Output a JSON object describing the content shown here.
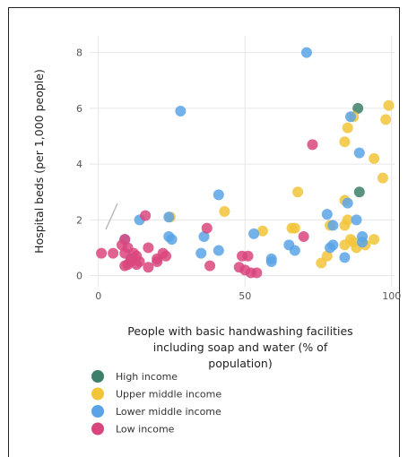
{
  "top_title_cut": "",
  "chart_data": {
    "type": "scatter",
    "title": "",
    "xlabel_lines": [
      "People with basic handwashing facilities",
      "including soap and water (% of",
      "population)"
    ],
    "ylabel": "Hospital beds (per 1,000 people)",
    "xlim": [
      -3,
      101
    ],
    "ylim": [
      -0.4,
      8.6
    ],
    "xticks": [
      0,
      50,
      100
    ],
    "yticks": [
      0,
      2,
      4,
      6,
      8
    ],
    "grid": true,
    "legend_position": "bottom-left",
    "series": [
      {
        "name": "High income",
        "color": "#3d7f6a",
        "points": [
          [
            88.5,
            6.0
          ],
          [
            89,
            3.0
          ]
        ]
      },
      {
        "name": "Upper middle income",
        "color": "#f2c438",
        "points": [
          [
            99,
            6.1
          ],
          [
            98,
            5.6
          ],
          [
            87,
            5.7
          ],
          [
            85,
            5.3
          ],
          [
            84,
            4.8
          ],
          [
            94,
            4.2
          ],
          [
            97,
            3.5
          ],
          [
            68,
            3.0
          ],
          [
            84,
            2.7
          ],
          [
            43,
            2.3
          ],
          [
            24.5,
            2.1
          ],
          [
            85,
            2.0
          ],
          [
            84,
            1.8
          ],
          [
            66,
            1.7
          ],
          [
            67,
            1.7
          ],
          [
            56,
            1.6
          ],
          [
            79,
            1.8
          ],
          [
            94,
            1.3
          ],
          [
            86,
            1.3
          ],
          [
            87,
            1.2
          ],
          [
            84,
            1.1
          ],
          [
            88,
            1.0
          ],
          [
            91,
            1.1
          ],
          [
            78,
            0.7
          ],
          [
            76,
            0.45
          ]
        ]
      },
      {
        "name": "Lower middle income",
        "color": "#5aa3e6",
        "points": [
          [
            71,
            8.0
          ],
          [
            28,
            5.9
          ],
          [
            86,
            5.7
          ],
          [
            89,
            4.4
          ],
          [
            41,
            2.9
          ],
          [
            85,
            2.6
          ],
          [
            88,
            2.0
          ],
          [
            78,
            2.2
          ],
          [
            14,
            2.0
          ],
          [
            24,
            2.1
          ],
          [
            24,
            1.4
          ],
          [
            25,
            1.3
          ],
          [
            36,
            1.4
          ],
          [
            53,
            1.5
          ],
          [
            80,
            1.8
          ],
          [
            90,
            1.4
          ],
          [
            90,
            1.2
          ],
          [
            65,
            1.1
          ],
          [
            67,
            0.9
          ],
          [
            79,
            1.0
          ],
          [
            80,
            1.1
          ],
          [
            41,
            0.9
          ],
          [
            35,
            0.8
          ],
          [
            59,
            0.6
          ],
          [
            59,
            0.5
          ],
          [
            84,
            0.65
          ],
          [
            9,
            1.3
          ]
        ]
      },
      {
        "name": "Low income",
        "color": "#d9467e",
        "points": [
          [
            73,
            4.7
          ],
          [
            16,
            2.15
          ],
          [
            37,
            1.7
          ],
          [
            70,
            1.4
          ],
          [
            9,
            1.3
          ],
          [
            10,
            1.0
          ],
          [
            8,
            1.1
          ],
          [
            17,
            1.0
          ],
          [
            12,
            0.8
          ],
          [
            13,
            0.7
          ],
          [
            5,
            0.8
          ],
          [
            1,
            0.8
          ],
          [
            9,
            0.8
          ],
          [
            11,
            0.6
          ],
          [
            14,
            0.5
          ],
          [
            22,
            0.8
          ],
          [
            20,
            0.6
          ],
          [
            20,
            0.5
          ],
          [
            11,
            0.5
          ],
          [
            9,
            0.35
          ],
          [
            10,
            0.4
          ],
          [
            13,
            0.4
          ],
          [
            17,
            0.3
          ],
          [
            38,
            0.35
          ],
          [
            49,
            0.7
          ],
          [
            51,
            0.7
          ],
          [
            48,
            0.3
          ],
          [
            50,
            0.2
          ],
          [
            52,
            0.1
          ],
          [
            54,
            0.1
          ],
          [
            23,
            0.7
          ]
        ]
      }
    ]
  }
}
